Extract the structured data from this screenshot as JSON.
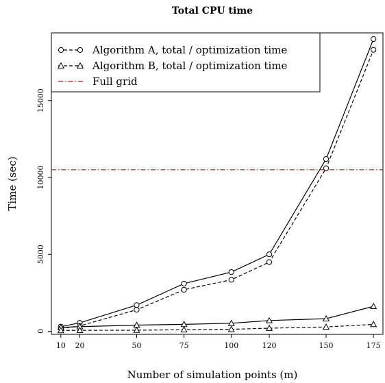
{
  "chart_data": {
    "type": "line",
    "title": "Total CPU time",
    "xlabel": "Number of simulation points (m)",
    "ylabel": "Time (sec)",
    "x": [
      10,
      20,
      50,
      75,
      100,
      120,
      150,
      175
    ],
    "x_ticks": [
      "10",
      "20",
      "50",
      "75",
      "100",
      "120",
      "150",
      "175"
    ],
    "y_ticks": [
      "0",
      "5000",
      "10000",
      "15000"
    ],
    "y_tick_values": [
      0,
      5000,
      10000,
      15000
    ],
    "xlim": [
      5,
      180
    ],
    "ylim": [
      -200,
      19400
    ],
    "grid": false,
    "legend_position": "top-left",
    "series": [
      {
        "name": "Algorithm A, total",
        "marker": "circle",
        "style": "solid",
        "values": [
          300,
          550,
          1700,
          3100,
          3850,
          5000,
          11200,
          19000
        ]
      },
      {
        "name": "Algorithm A, optimization time",
        "marker": "circle",
        "style": "dashed",
        "values": [
          180,
          350,
          1400,
          2700,
          3350,
          4500,
          10600,
          18300
        ]
      },
      {
        "name": "Algorithm B, total",
        "marker": "triangle",
        "style": "solid",
        "values": [
          250,
          300,
          400,
          450,
          520,
          700,
          820,
          1620
        ]
      },
      {
        "name": "Algorithm B, optimization time",
        "marker": "triangle",
        "style": "dashed",
        "values": [
          50,
          60,
          70,
          100,
          130,
          200,
          280,
          450
        ]
      }
    ],
    "reference_lines": [
      {
        "name": "Full grid",
        "y": 10500,
        "style": "dash-dot",
        "color": "#e00000"
      }
    ],
    "legend": [
      "Algorithm A, total / optimization time",
      "Algorithm B, total / optimization time",
      "Full grid"
    ]
  }
}
